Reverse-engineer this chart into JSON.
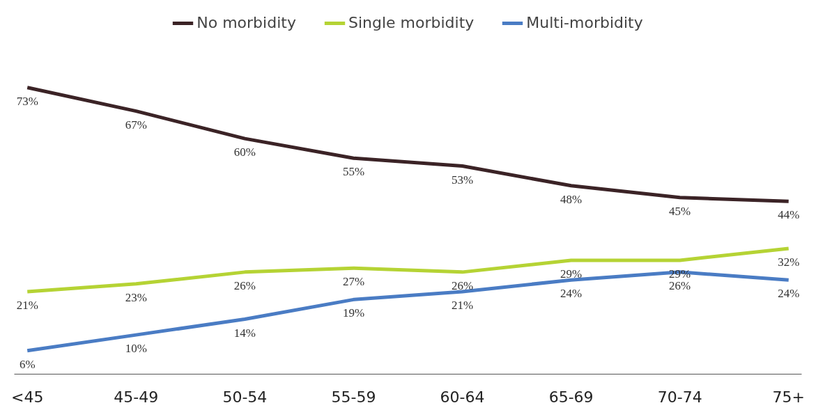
{
  "chart_data": {
    "type": "line",
    "categories": [
      "<45",
      "45-49",
      "50-54",
      "55-59",
      "60-64",
      "65-69",
      "70-74",
      "75+"
    ],
    "series": [
      {
        "name": "No morbidity",
        "color": "#3b2326",
        "values": [
          73,
          67,
          60,
          55,
          53,
          48,
          45,
          44
        ],
        "value_labels": [
          "73%",
          "67%",
          "60%",
          "55%",
          "53%",
          "48%",
          "45%",
          "44%"
        ]
      },
      {
        "name": "Single morbidity",
        "color": "#b5d334",
        "values": [
          21,
          23,
          26,
          27,
          26,
          29,
          29,
          32
        ],
        "value_labels": [
          "21%",
          "23%",
          "26%",
          "27%",
          "26%",
          "29%",
          "29%",
          "32%"
        ]
      },
      {
        "name": "Multi-morbidity",
        "color": "#4a7cc4",
        "values": [
          6,
          10,
          14,
          19,
          21,
          24,
          26,
          24
        ],
        "value_labels": [
          "6%",
          "10%",
          "14%",
          "19%",
          "21%",
          "24%",
          "26%",
          "24%"
        ]
      }
    ],
    "legend": "top",
    "grid": false,
    "marker": "none",
    "line_style": "solid"
  }
}
